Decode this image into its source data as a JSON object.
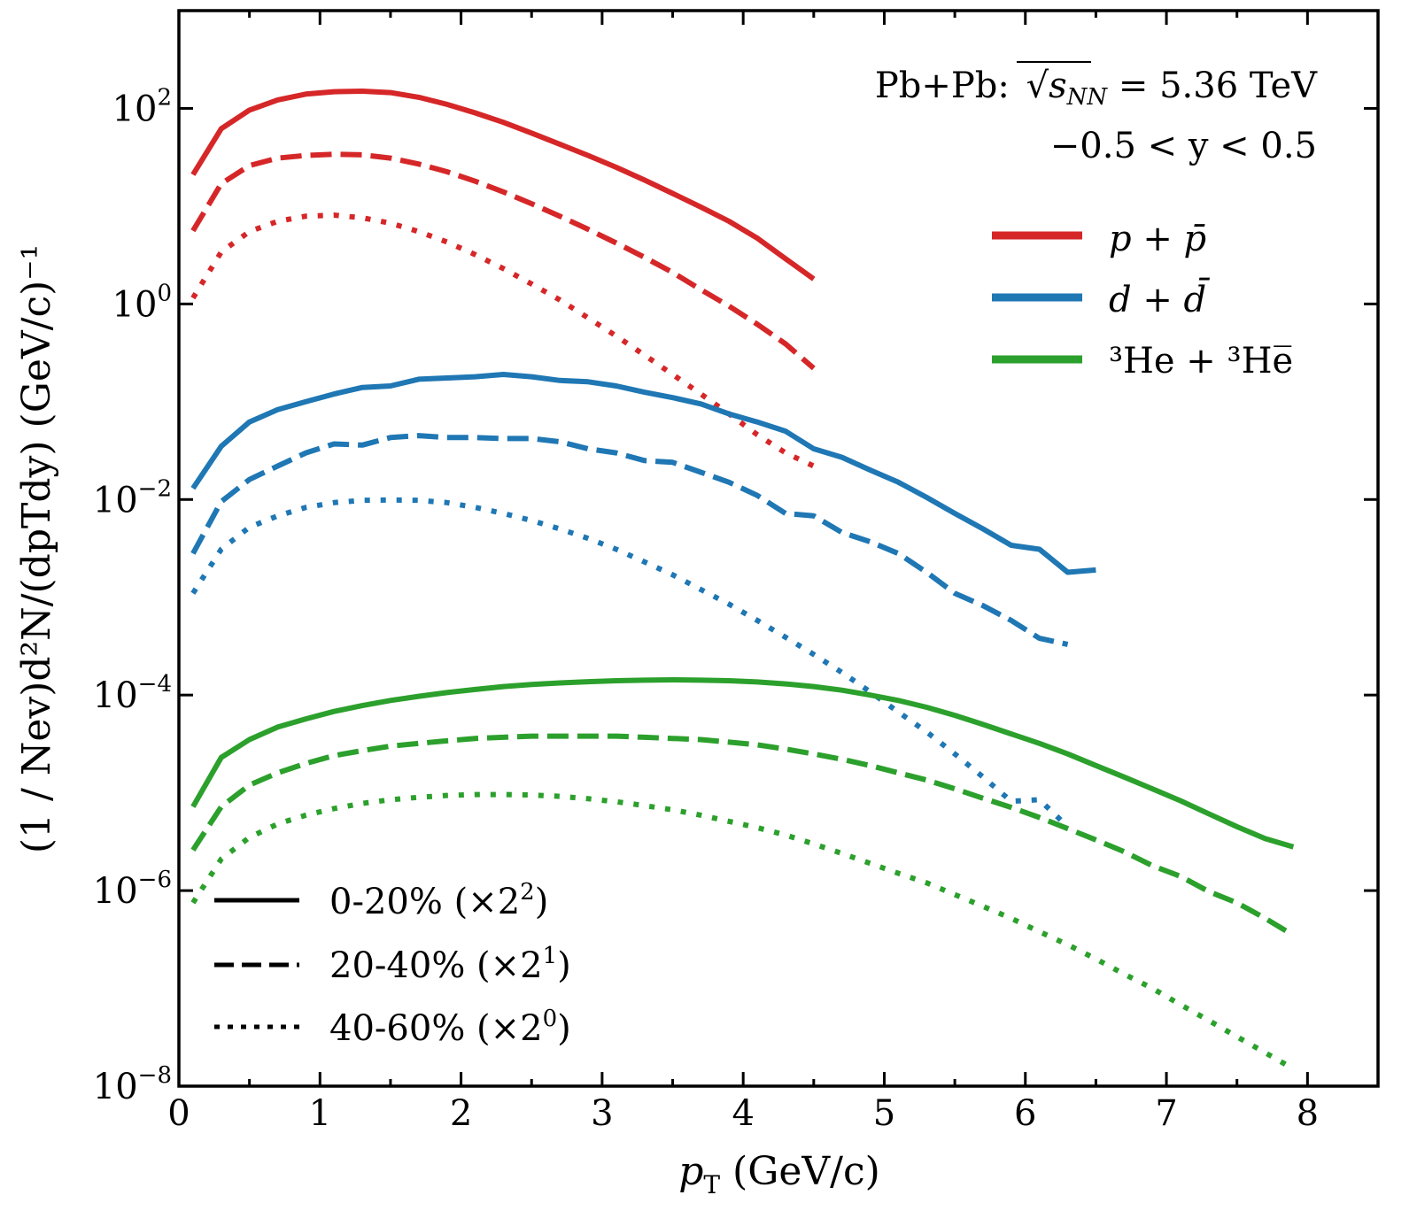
{
  "chart_data": {
    "type": "line",
    "title": "",
    "xlabel": "p_T (GeV/c)",
    "xlabel_parts": {
      "main": "p",
      "sub": "T",
      "rest": " (GeV/c)"
    },
    "ylabel": "(1/N_ev) d^2N/(dp_T dy) (GeV/c)^-1",
    "ylabel_text": "(1 / Nev)d²N/(dpTdy) (GeV/c)⁻¹",
    "xlim": [
      0,
      8.5
    ],
    "ylim": [
      1e-08,
      1000
    ],
    "yscale": "log",
    "grid": false,
    "x_ticks": [
      0,
      1,
      2,
      3,
      4,
      5,
      6,
      7,
      8
    ],
    "x_tick_labels": [
      "0",
      "1",
      "2",
      "3",
      "4",
      "5",
      "6",
      "7",
      "8"
    ],
    "x_minor_ticks": [
      0.5,
      1.5,
      2.5,
      3.5,
      4.5,
      5.5,
      6.5,
      7.5
    ],
    "y_ticks": [
      100,
      1,
      0.01,
      0.0001,
      1e-06,
      1e-08
    ],
    "y_tick_labels": [
      {
        "base": "10",
        "exp": "2"
      },
      {
        "base": "10",
        "exp": "0"
      },
      {
        "base": "10",
        "exp": "−2"
      },
      {
        "base": "10",
        "exp": "−4"
      },
      {
        "base": "10",
        "exp": "−6"
      },
      {
        "base": "10",
        "exp": "−8"
      }
    ],
    "annotations": [
      {
        "text_prefix": "Pb+Pb: ",
        "sqrt_var": "s",
        "sqrt_sub": "NN",
        "text_suffix": " = 5.36 TeV"
      },
      {
        "text": "−0.5 < y < 0.5"
      }
    ],
    "particle_legend": [
      {
        "label": "p + p̄",
        "color": "#d62728"
      },
      {
        "label": "d + d̄",
        "color": "#1f77b4"
      },
      {
        "label": "³He + ³He̅",
        "color": "#2ca02c"
      }
    ],
    "centrality_legend": [
      {
        "label": "0-20% (×2",
        "exp": "2",
        "close": ")",
        "style": "solid"
      },
      {
        "label": "20-40% (×2",
        "exp": "1",
        "close": ")",
        "style": "dashed"
      },
      {
        "label": "40-60% (×2",
        "exp": "0",
        "close": ")",
        "style": "dotted"
      }
    ],
    "legend_positions": {
      "particles": "upper-right",
      "centrality": "lower-left"
    },
    "series": [
      {
        "name": "p+pbar 0-20%",
        "color": "#d62728",
        "style": "solid",
        "x": [
          0.1,
          0.3,
          0.5,
          0.7,
          0.9,
          1.1,
          1.3,
          1.5,
          1.7,
          1.9,
          2.1,
          2.3,
          2.5,
          2.7,
          2.9,
          3.1,
          3.3,
          3.5,
          3.7,
          3.9,
          4.1,
          4.3,
          4.5
        ],
        "y": [
          21,
          62,
          96,
          122,
          140,
          148,
          150,
          145,
          130,
          110,
          90,
          72,
          56,
          43,
          33,
          25,
          18.5,
          13.5,
          9.8,
          7.0,
          4.7,
          2.9,
          1.8
        ]
      },
      {
        "name": "p+pbar 20-40%",
        "color": "#d62728",
        "style": "dashed",
        "x": [
          0.1,
          0.3,
          0.5,
          0.7,
          0.9,
          1.1,
          1.3,
          1.5,
          1.7,
          1.9,
          2.1,
          2.3,
          2.5,
          2.7,
          2.9,
          3.1,
          3.3,
          3.5,
          3.7,
          3.9,
          4.1,
          4.3,
          4.5
        ],
        "y": [
          5.6,
          17,
          26,
          31,
          33,
          34,
          33.5,
          31,
          27,
          22.5,
          18,
          14,
          10.6,
          7.9,
          5.8,
          4.2,
          3.0,
          2.1,
          1.4,
          0.95,
          0.62,
          0.39,
          0.22
        ]
      },
      {
        "name": "p+pbar 40-60%",
        "color": "#d62728",
        "style": "dotted",
        "x": [
          0.1,
          0.3,
          0.5,
          0.7,
          0.9,
          1.1,
          1.3,
          1.5,
          1.7,
          1.9,
          2.1,
          2.3,
          2.5,
          2.7,
          2.9,
          3.1,
          3.3,
          3.5,
          3.7,
          3.9,
          4.1,
          4.3,
          4.5
        ],
        "y": [
          1.15,
          3.4,
          5.5,
          7.0,
          7.9,
          8.1,
          7.6,
          6.7,
          5.5,
          4.3,
          3.2,
          2.3,
          1.6,
          1.1,
          0.72,
          0.47,
          0.3,
          0.19,
          0.12,
          0.075,
          0.046,
          0.03,
          0.022
        ]
      },
      {
        "name": "d+dbar 0-20%",
        "color": "#1f77b4",
        "style": "solid",
        "x": [
          0.1,
          0.3,
          0.5,
          0.7,
          0.9,
          1.1,
          1.3,
          1.5,
          1.7,
          1.9,
          2.1,
          2.3,
          2.5,
          2.7,
          2.9,
          3.1,
          3.3,
          3.5,
          3.7,
          3.9,
          4.1,
          4.3,
          4.5,
          4.7,
          4.9,
          5.1,
          5.3,
          5.5,
          5.7,
          5.9,
          6.1,
          6.3,
          6.5
        ],
        "y": [
          0.013,
          0.035,
          0.062,
          0.083,
          0.1,
          0.12,
          0.14,
          0.145,
          0.17,
          0.175,
          0.18,
          0.19,
          0.18,
          0.165,
          0.16,
          0.145,
          0.125,
          0.11,
          0.095,
          0.075,
          0.062,
          0.05,
          0.033,
          0.027,
          0.02,
          0.015,
          0.0105,
          0.0072,
          0.005,
          0.0034,
          0.0031,
          0.0018,
          0.0019
        ]
      },
      {
        "name": "d+dbar 20-40%",
        "color": "#1f77b4",
        "style": "dashed",
        "x": [
          0.1,
          0.3,
          0.5,
          0.7,
          0.9,
          1.1,
          1.3,
          1.5,
          1.7,
          1.9,
          2.1,
          2.3,
          2.5,
          2.7,
          2.9,
          3.1,
          3.3,
          3.5,
          3.7,
          3.9,
          4.1,
          4.3,
          4.5,
          4.7,
          4.9,
          5.1,
          5.3,
          5.5,
          5.7,
          5.9,
          6.1,
          6.3
        ],
        "y": [
          0.0028,
          0.0095,
          0.016,
          0.022,
          0.03,
          0.037,
          0.036,
          0.043,
          0.045,
          0.043,
          0.043,
          0.042,
          0.042,
          0.039,
          0.033,
          0.03,
          0.025,
          0.024,
          0.019,
          0.015,
          0.011,
          0.0072,
          0.0068,
          0.0046,
          0.0037,
          0.0028,
          0.0018,
          0.0011,
          0.00082,
          0.00058,
          0.00038,
          0.00033
        ]
      },
      {
        "name": "d+dbar 40-60%",
        "color": "#1f77b4",
        "style": "dotted",
        "x": [
          0.1,
          0.3,
          0.5,
          0.7,
          0.9,
          1.1,
          1.3,
          1.5,
          1.7,
          1.9,
          2.1,
          2.3,
          2.5,
          2.7,
          2.9,
          3.1,
          3.3,
          3.5,
          3.7,
          3.9,
          4.1,
          4.3,
          4.5,
          4.7,
          4.9,
          5.1,
          5.3,
          5.5,
          5.7,
          5.9,
          6.1,
          6.3
        ],
        "y": [
          0.0011,
          0.0031,
          0.0052,
          0.0068,
          0.0083,
          0.0093,
          0.0098,
          0.0099,
          0.0098,
          0.0093,
          0.0083,
          0.0072,
          0.0061,
          0.005,
          0.004,
          0.0031,
          0.0023,
          0.0017,
          0.0012,
          0.00085,
          0.00058,
          0.00039,
          0.00026,
          0.00017,
          0.000108,
          6.7e-05,
          4.2e-05,
          2.5e-05,
          1.45e-05,
          8.2e-06,
          8.5e-06,
          4.5e-06
        ]
      },
      {
        "name": "3He 0-20%",
        "color": "#2ca02c",
        "style": "solid",
        "x": [
          0.1,
          0.3,
          0.5,
          0.7,
          0.9,
          1.1,
          1.3,
          1.5,
          1.7,
          1.9,
          2.1,
          2.3,
          2.5,
          2.7,
          2.9,
          3.1,
          3.3,
          3.5,
          3.7,
          3.9,
          4.1,
          4.3,
          4.5,
          4.7,
          4.9,
          5.1,
          5.3,
          5.5,
          5.7,
          5.9,
          6.1,
          6.3,
          6.5,
          6.7,
          6.9,
          7.1,
          7.3,
          7.5,
          7.7,
          7.9
        ],
        "y": [
          7.2e-06,
          2.3e-05,
          3.5e-05,
          4.7e-05,
          5.7e-05,
          6.8e-05,
          7.8e-05,
          8.8e-05,
          9.7e-05,
          0.000106,
          0.000114,
          0.000122,
          0.000128,
          0.000133,
          0.000137,
          0.00014,
          0.000142,
          0.000143,
          0.000142,
          0.00014,
          0.000136,
          0.00013,
          0.000122,
          0.000112,
          0.0001,
          8.8e-05,
          7.5e-05,
          6.2e-05,
          5e-05,
          4e-05,
          3.2e-05,
          2.5e-05,
          1.9e-05,
          1.45e-05,
          1.1e-05,
          8.3e-06,
          6.1e-06,
          4.5e-06,
          3.4e-06,
          2.8e-06
        ]
      },
      {
        "name": "3He 20-40%",
        "color": "#2ca02c",
        "style": "dashed",
        "x": [
          0.1,
          0.3,
          0.5,
          0.7,
          0.9,
          1.1,
          1.3,
          1.5,
          1.7,
          1.9,
          2.1,
          2.3,
          2.5,
          2.7,
          2.9,
          3.1,
          3.3,
          3.5,
          3.7,
          3.9,
          4.1,
          4.3,
          4.5,
          4.7,
          4.9,
          5.1,
          5.3,
          5.5,
          5.7,
          5.9,
          6.1,
          6.3,
          6.5,
          6.7,
          6.9,
          7.1,
          7.3,
          7.5,
          7.7,
          7.9
        ],
        "y": [
          2.6e-06,
          7.2e-06,
          1.2e-05,
          1.6e-05,
          2e-05,
          2.4e-05,
          2.7e-05,
          3e-05,
          3.2e-05,
          3.4e-05,
          3.6e-05,
          3.7e-05,
          3.8e-05,
          3.8e-05,
          3.8e-05,
          3.8e-05,
          3.7e-05,
          3.6e-05,
          3.5e-05,
          3.3e-05,
          3.1e-05,
          2.8e-05,
          2.5e-05,
          2.2e-05,
          1.9e-05,
          1.6e-05,
          1.35e-05,
          1.1e-05,
          8.8e-06,
          7.1e-06,
          5.6e-06,
          4.3e-06,
          3.3e-06,
          2.5e-06,
          1.8e-06,
          1.4e-06,
          9.8e-07,
          7.5e-07,
          5.2e-07,
          3.5e-07
        ]
      },
      {
        "name": "3He 40-60%",
        "color": "#2ca02c",
        "style": "dotted",
        "x": [
          0.1,
          0.3,
          0.5,
          0.7,
          0.9,
          1.1,
          1.3,
          1.5,
          1.7,
          1.9,
          2.1,
          2.3,
          2.5,
          2.7,
          2.9,
          3.1,
          3.3,
          3.5,
          3.7,
          3.9,
          4.1,
          4.3,
          4.5,
          4.7,
          4.9,
          5.1,
          5.3,
          5.5,
          5.7,
          5.9,
          6.1,
          6.3,
          6.5,
          6.7,
          6.9,
          7.1,
          7.3,
          7.5,
          7.7,
          7.9
        ],
        "y": [
          7.5e-07,
          2.1e-06,
          3.5e-06,
          4.8e-06,
          5.9e-06,
          6.9e-06,
          7.8e-06,
          8.5e-06,
          9e-06,
          9.4e-06,
          9.6e-06,
          9.6e-06,
          9.5e-06,
          9.2e-06,
          8.7e-06,
          8.1e-06,
          7.4e-06,
          6.7e-06,
          5.9e-06,
          5.1e-06,
          4.4e-06,
          3.7e-06,
          3e-06,
          2.4e-06,
          1.9e-06,
          1.5e-06,
          1.2e-06,
          9.1e-07,
          6.9e-07,
          5.2e-07,
          3.8e-07,
          2.8e-07,
          2e-07,
          1.4e-07,
          1e-07,
          6.8e-08,
          4.7e-08,
          3.2e-08,
          2.2e-08,
          1.5e-08
        ]
      }
    ]
  }
}
